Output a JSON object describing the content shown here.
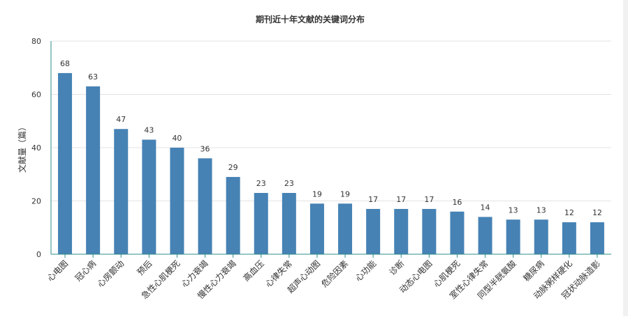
{
  "chart_data": {
    "type": "bar",
    "title": "期刊近十年文献的关键词分布",
    "ylabel": "文献量（篇）",
    "xlabel": "",
    "ylim": [
      0,
      80
    ],
    "yticks": [
      0,
      20,
      40,
      60,
      80
    ],
    "grid": true,
    "categories": [
      "心电图",
      "冠心病",
      "心房颤动",
      "预后",
      "急性心肌梗死",
      "心力衰竭",
      "慢性心力衰竭",
      "高血压",
      "心律失常",
      "超声心动图",
      "危险因素",
      "心功能",
      "诊断",
      "动态心电图",
      "心肌梗死",
      "室性心律失常",
      "同型半胱氨酸",
      "糖尿病",
      "动脉粥样硬化",
      "冠状动脉造影"
    ],
    "values": [
      68,
      63,
      47,
      43,
      40,
      36,
      29,
      23,
      23,
      19,
      19,
      17,
      17,
      17,
      16,
      14,
      13,
      13,
      12,
      12
    ],
    "colors": {
      "bar": "#4682b4",
      "axis": "#2e8b8b",
      "grid": "#e3e3e3",
      "text": "#333333"
    }
  }
}
